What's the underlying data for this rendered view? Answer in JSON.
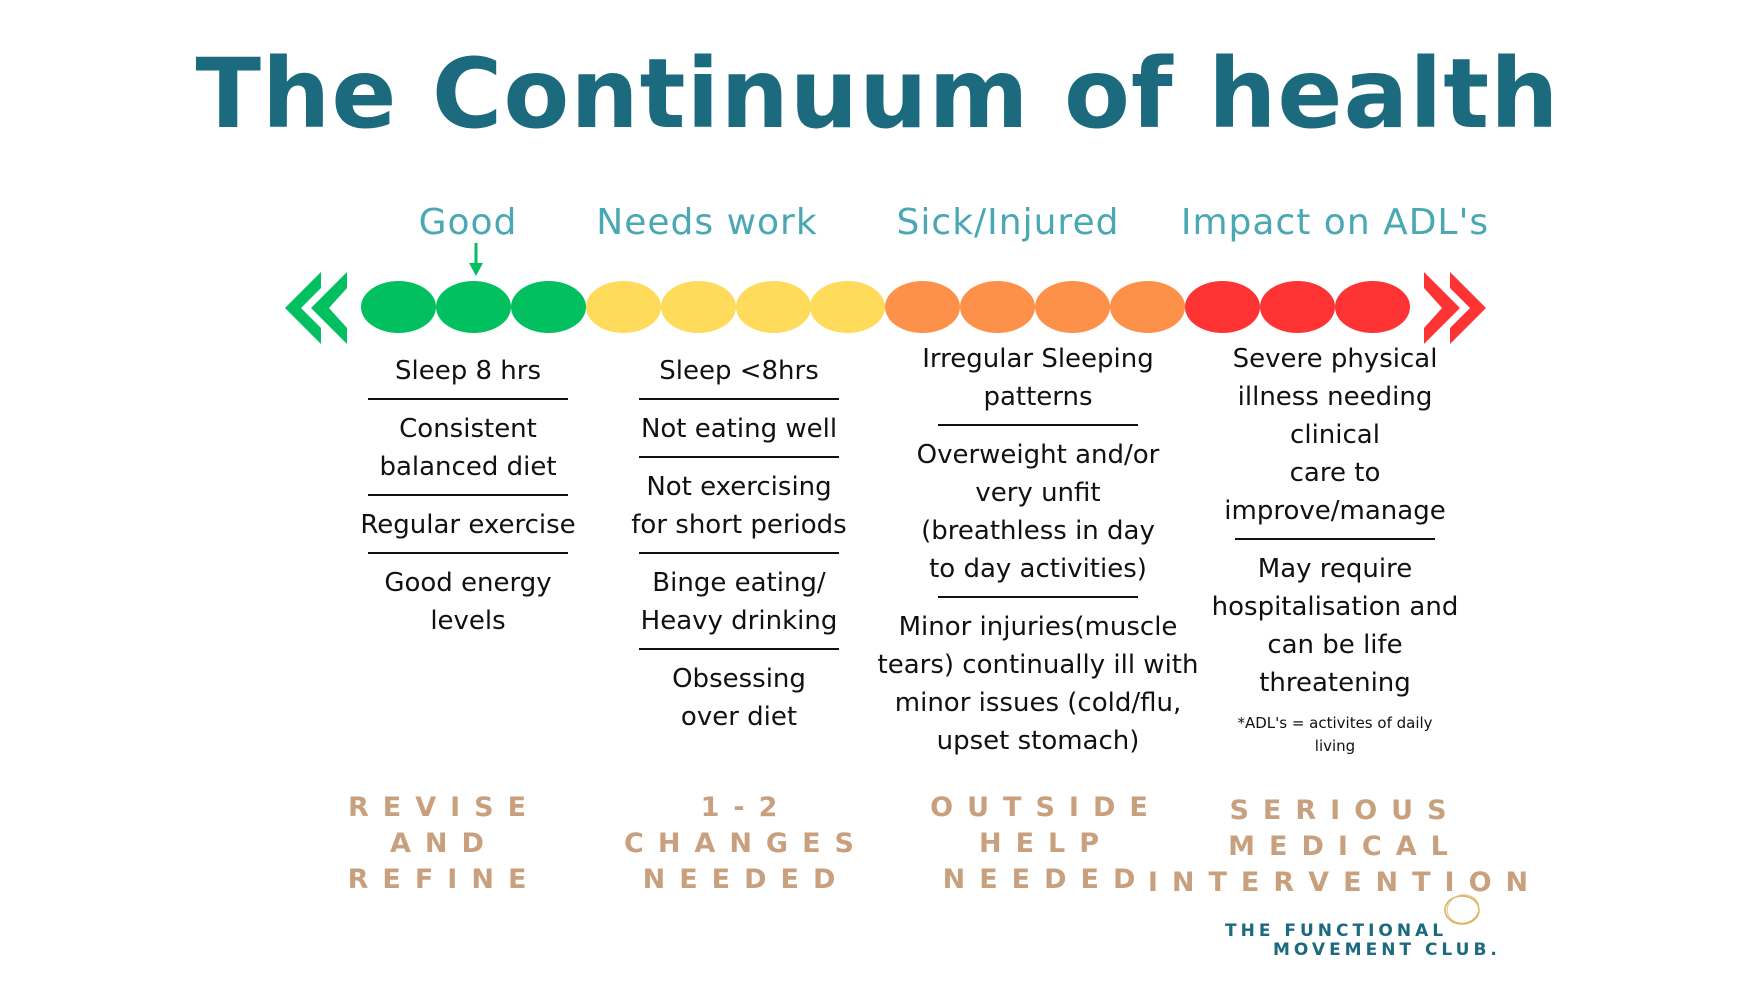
{
  "title": "The Continuum of health",
  "colors": {
    "title": "#1b6a7e",
    "category": "#49a8b4",
    "green": "#02bf5f",
    "yellow": "#fedb5a",
    "orange": "#fe914a",
    "red": "#fe3434",
    "bottom": "#c9a07e"
  },
  "categories": [
    {
      "label": "Good",
      "color": "#02bf5f"
    },
    {
      "label": "Needs work",
      "color": "#fedb5a"
    },
    {
      "label": "Sick/Injured",
      "color": "#fe914a"
    },
    {
      "label": "Impact on ADL's",
      "color": "#fe3434"
    }
  ],
  "scale_dots": [
    "#02bf5f",
    "#02bf5f",
    "#02bf5f",
    "#fedb5a",
    "#fedb5a",
    "#fedb5a",
    "#fedb5a",
    "#fe914a",
    "#fe914a",
    "#fe914a",
    "#fe914a",
    "#fe3434",
    "#fe3434",
    "#fe3434"
  ],
  "columns": [
    {
      "items": [
        "Sleep 8 hrs",
        "Consistent\nbalanced diet",
        "Regular exercise",
        "Good energy\nlevels"
      ]
    },
    {
      "items": [
        "Sleep <8hrs",
        "Not eating well",
        "Not exercising\nfor short periods",
        "Binge eating/\nHeavy drinking",
        "Obsessing\nover diet"
      ]
    },
    {
      "items": [
        "Irregular Sleeping\npatterns",
        "Overweight and/or\nvery unfit\n(breathless in day\nto day activities)",
        "Minor injuries(muscle\ntears) continually ill with\nminor issues (cold/flu,\nupset stomach)"
      ]
    },
    {
      "items": [
        "Severe physical\nillness needing\nclinical\ncare to\nimprove/manage",
        "May require\nhospitalisation and\ncan be life\nthreatening"
      ],
      "footnote": "*ADL's = activites of daily\nliving"
    }
  ],
  "bottom_labels": [
    "REVISE\nAND\nREFINE",
    "1-2\nCHANGES\nNEEDED",
    "OUTSIDE\nHELP\nNEEDED",
    "SERIOUS\nMEDICAL\nINTERVENTION"
  ],
  "logo": {
    "line1": "THE FUNCTIONAL",
    "line2": "MOVEMENT CLUB."
  }
}
